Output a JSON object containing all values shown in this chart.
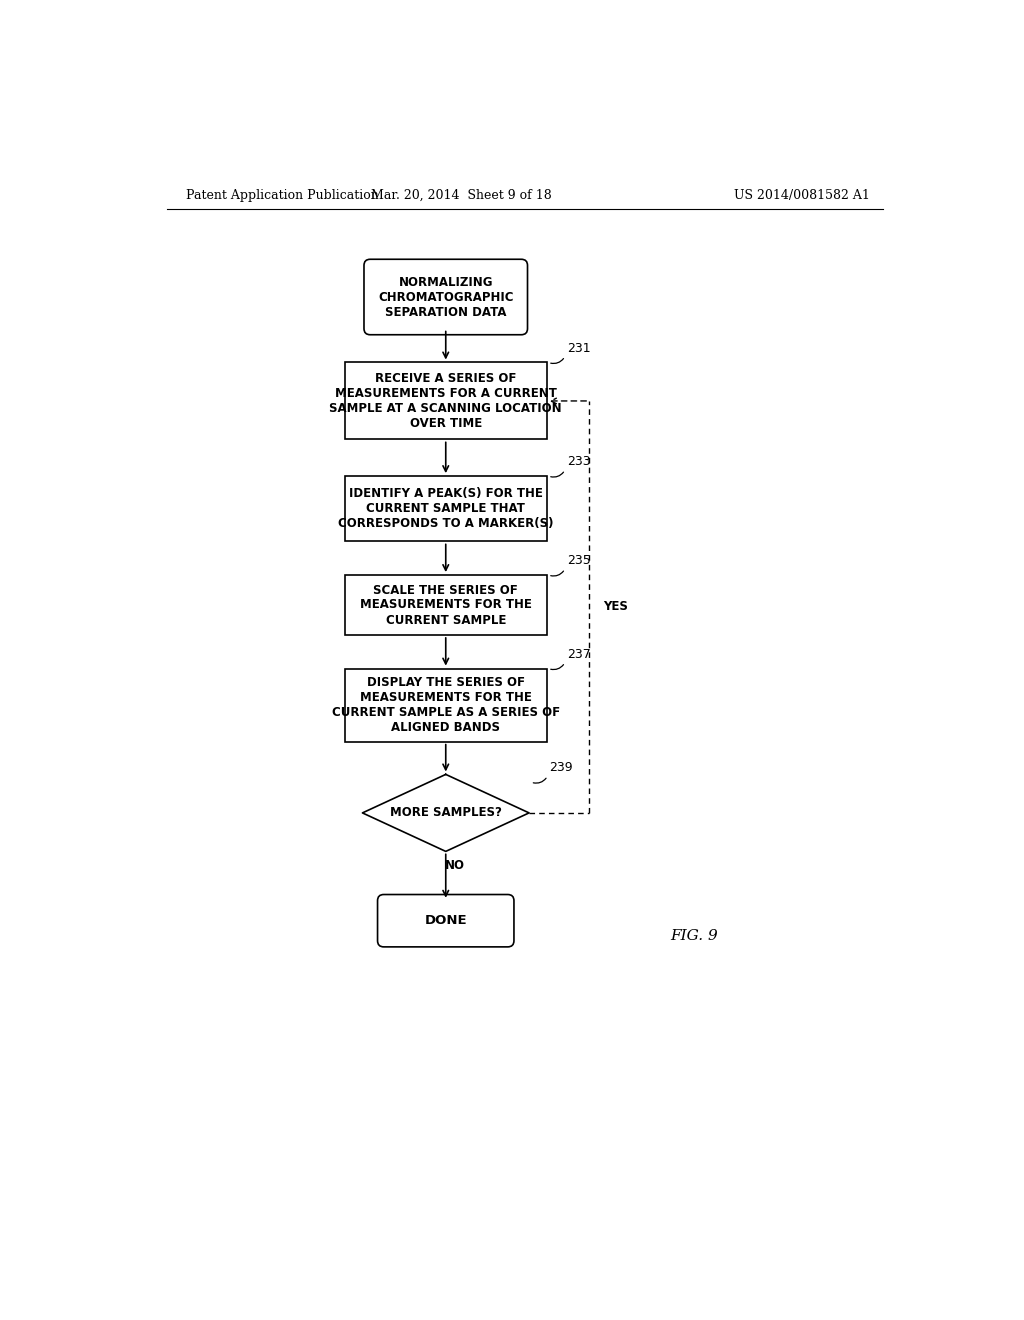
{
  "background_color": "#ffffff",
  "header_left": "Patent Application Publication",
  "header_mid": "Mar. 20, 2014  Sheet 9 of 18",
  "header_right": "US 2014/0081582 A1",
  "fig_label": "FIG. 9",
  "line_color": "#000000",
  "line_width": 1.2,
  "start_text": "NORMALIZING\nCHROMATOGRAPHIC\nSEPARATION DATA",
  "box231_text": "RECEIVE A SERIES OF\nMEASUREMENTS FOR A CURRENT\nSAMPLE AT A SCANNING LOCATION\nOVER TIME",
  "box233_text": "IDENTIFY A PEAK(S) FOR THE\nCURRENT SAMPLE THAT\nCORRESPONDS TO A MARKER(S)",
  "box235_text": "SCALE THE SERIES OF\nMEASUREMENTS FOR THE\nCURRENT SAMPLE",
  "box237_text": "DISPLAY THE SERIES OF\nMEASUREMENTS FOR THE\nCURRENT SAMPLE AS A SERIES OF\nALIGNED BANDS",
  "diamond_text": "MORE SAMPLES?",
  "done_text": "DONE",
  "label231": "231",
  "label233": "233",
  "label235": "235",
  "label237": "237",
  "label239": "239",
  "yes_label": "YES",
  "no_label": "NO"
}
